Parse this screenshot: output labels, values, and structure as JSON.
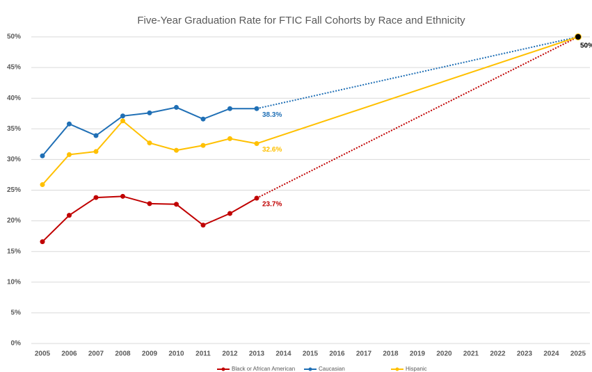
{
  "chart_data": {
    "type": "line",
    "title": "Five-Year Graduation Rate for FTIC Fall Cohorts by Race and Ethnicity",
    "categories": [
      "2005",
      "2006",
      "2007",
      "2008",
      "2009",
      "2010",
      "2011",
      "2012",
      "2013",
      "2014",
      "2015",
      "2016",
      "2017",
      "2018",
      "2019",
      "2020",
      "2021",
      "2022",
      "2023",
      "2024",
      "2025"
    ],
    "series": [
      {
        "name": "Black or African American",
        "color": "#c00000",
        "projection_style": "dotted",
        "values": [
          16.6,
          20.9,
          23.8,
          24.0,
          22.8,
          22.7,
          19.3,
          21.2,
          23.7,
          null,
          null,
          null,
          null,
          null,
          null,
          null,
          null,
          null,
          null,
          null,
          null
        ],
        "value_labels": [
          null,
          null,
          null,
          null,
          null,
          null,
          null,
          null,
          "23.7%",
          null,
          null,
          null,
          null,
          null,
          null,
          null,
          null,
          null,
          null,
          null,
          null
        ]
      },
      {
        "name": "Caucasian",
        "color": "#1f6fb5",
        "projection_style": "dotted",
        "values": [
          30.6,
          35.8,
          33.9,
          37.1,
          37.6,
          38.5,
          36.6,
          38.3,
          38.3,
          null,
          null,
          null,
          null,
          null,
          null,
          null,
          null,
          null,
          null,
          null,
          null
        ],
        "value_labels": [
          null,
          null,
          null,
          null,
          null,
          null,
          null,
          null,
          "38.3%",
          null,
          null,
          null,
          null,
          null,
          null,
          null,
          null,
          null,
          null,
          null,
          null
        ]
      },
      {
        "name": "Hispanic",
        "color": "#ffc000",
        "projection_style": "solid",
        "values": [
          25.9,
          30.8,
          31.3,
          36.3,
          32.7,
          31.5,
          32.3,
          33.4,
          32.6,
          null,
          null,
          null,
          null,
          null,
          null,
          null,
          null,
          null,
          null,
          null,
          null
        ],
        "value_labels": [
          null,
          null,
          null,
          null,
          null,
          null,
          null,
          null,
          "32.6%",
          null,
          null,
          null,
          null,
          null,
          null,
          null,
          null,
          null,
          null,
          null,
          null
        ]
      }
    ],
    "target": {
      "category": "2025",
      "value": 50,
      "label": "50%",
      "color": "#000000"
    },
    "ylim": [
      0,
      50
    ],
    "yticks": [
      {
        "value": 0,
        "label": "0%"
      },
      {
        "value": 5,
        "label": "5%"
      },
      {
        "value": 10,
        "label": "10%"
      },
      {
        "value": 15,
        "label": "15%"
      },
      {
        "value": 20,
        "label": "20%"
      },
      {
        "value": 25,
        "label": "25%"
      },
      {
        "value": 30,
        "label": "30%"
      },
      {
        "value": 35,
        "label": "35%"
      },
      {
        "value": 40,
        "label": "40%"
      },
      {
        "value": 45,
        "label": "45%"
      },
      {
        "value": 50,
        "label": "50%"
      }
    ],
    "grid": true,
    "legend": "bottom"
  }
}
